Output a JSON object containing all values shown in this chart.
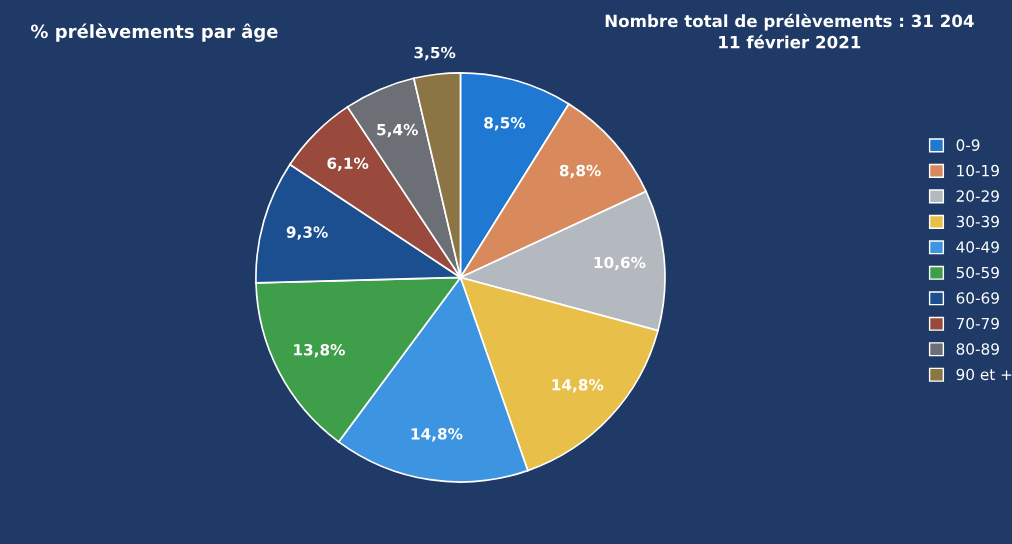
{
  "chart_data": {
    "type": "pie",
    "title": "% prélèvements par âge",
    "subtitle": "Nombre total de prélèvements : 31 204\n11 février 2021",
    "categories": [
      "0-9",
      "10-19",
      "20-29",
      "30-39",
      "40-49",
      "50-59",
      "60-69",
      "70-79",
      "80-89",
      "90 et +"
    ],
    "values": [
      8.5,
      8.8,
      10.6,
      14.8,
      14.8,
      13.8,
      9.3,
      6.1,
      5.4,
      3.5
    ],
    "value_labels": [
      "8,5%",
      "8,8%",
      "10,6%",
      "14,8%",
      "14,8%",
      "13,8%",
      "9,3%",
      "6,1%",
      "5,4%",
      "3,5%"
    ],
    "colors": [
      "#1f78d1",
      "#d98a5c",
      "#b4b8bf",
      "#e8c049",
      "#3d94e0",
      "#3f9e4a",
      "#1c4f8f",
      "#9a4a3c",
      "#6d6f76",
      "#8c7545"
    ],
    "legend": "right"
  }
}
